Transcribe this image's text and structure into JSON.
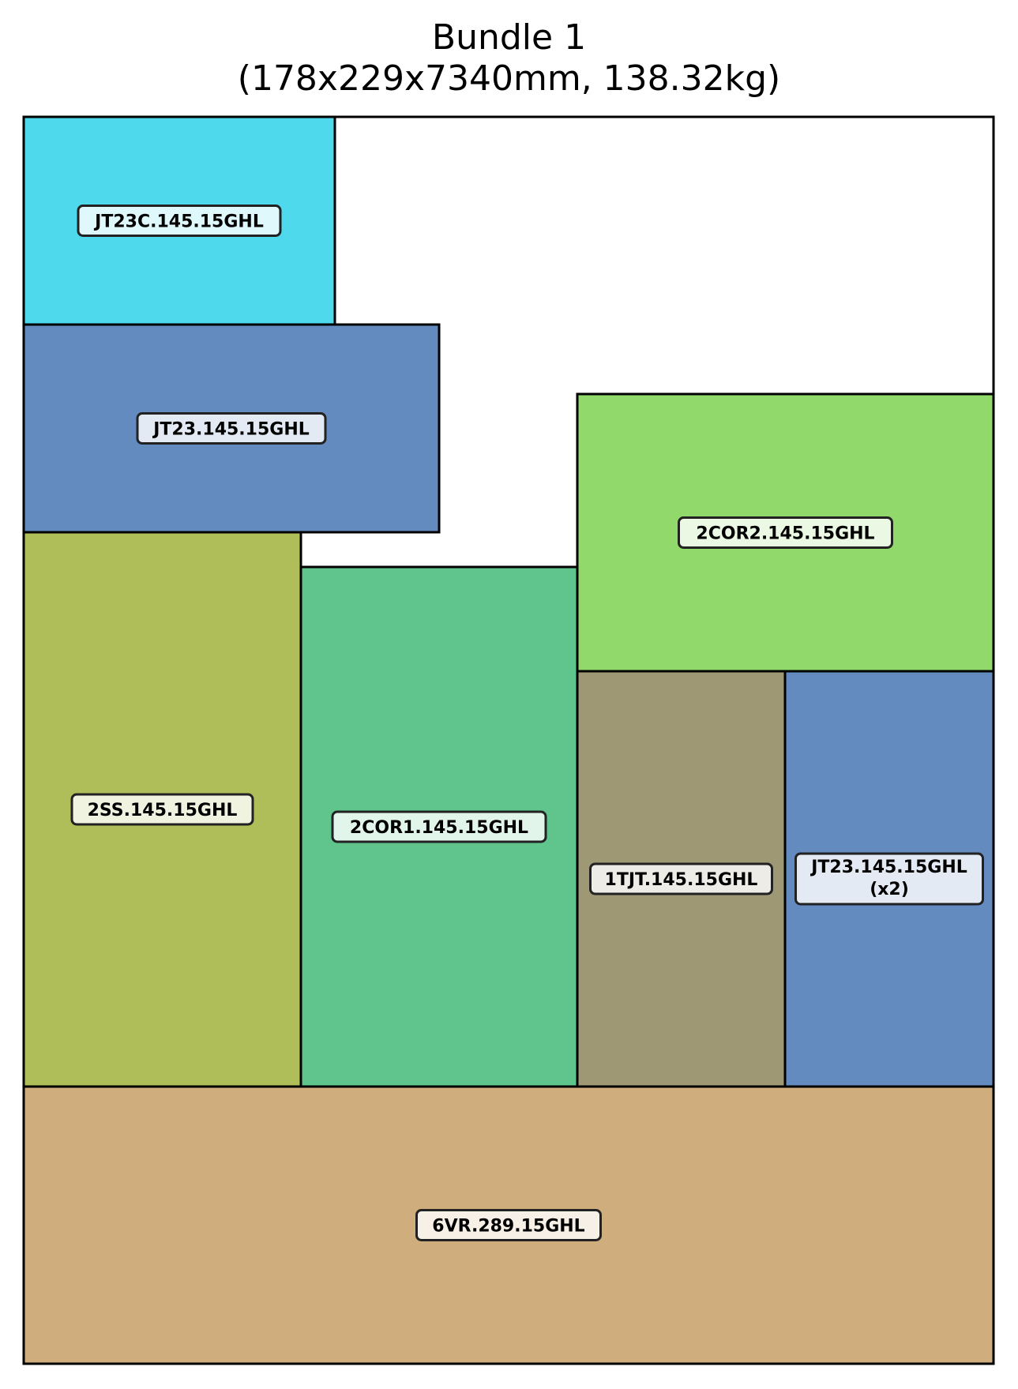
{
  "diagram": {
    "title_line1": "Bundle 1",
    "title_line2": "(178x229x7340mm, 138.32kg)",
    "pieces": [
      {
        "label": "JT23C.145.15GHL",
        "color": "#4ed9ec"
      },
      {
        "label": "JT23.145.15GHL",
        "color": "#638bbf"
      },
      {
        "label": "2COR2.145.15GHL",
        "color": "#90d96a"
      },
      {
        "label": "2SS.145.15GHL",
        "color": "#afbe58"
      },
      {
        "label": "2COR1.145.15GHL",
        "color": "#5fc58d"
      },
      {
        "label": "1TJT.145.15GHL",
        "color": "#9e9874"
      },
      {
        "label": "JT23.145.15GHL",
        "label2": "(x2)",
        "color": "#638bbf"
      },
      {
        "label": "6VR.289.15GHL",
        "color": "#cfad7d"
      }
    ]
  }
}
